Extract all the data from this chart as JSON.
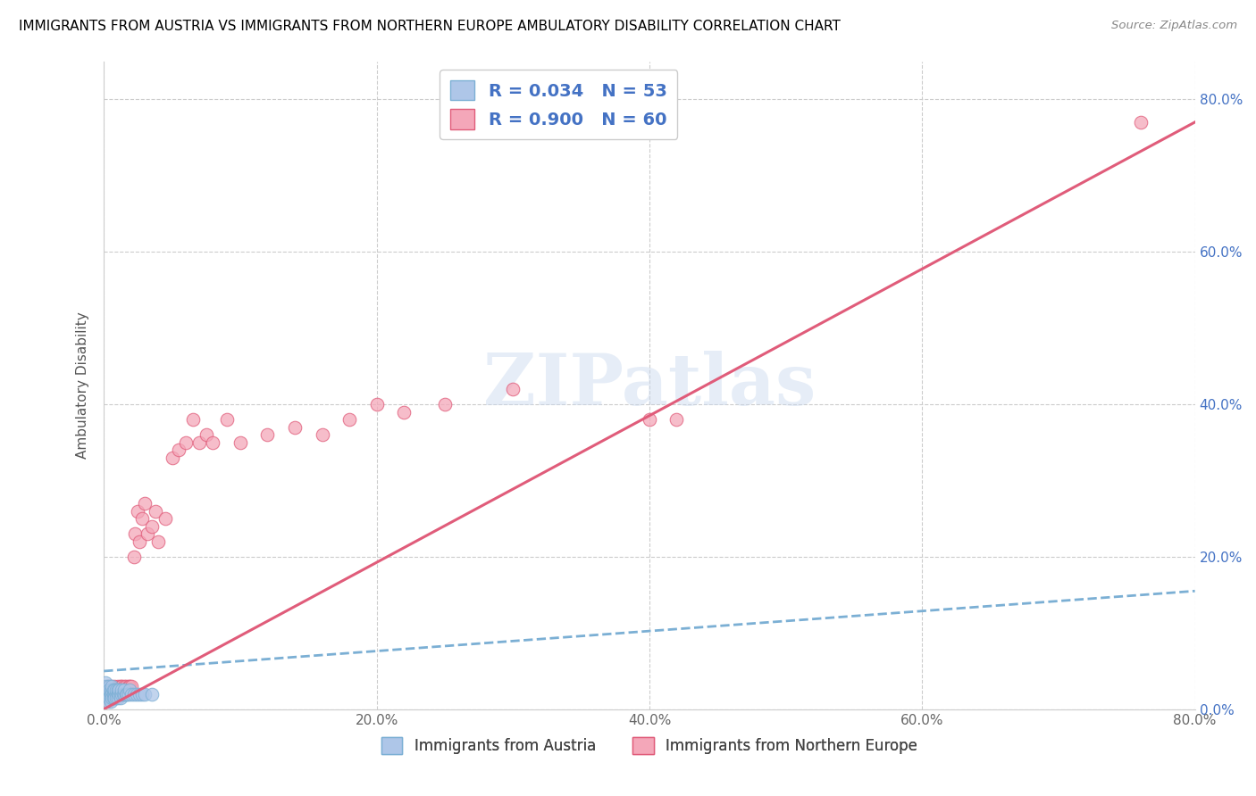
{
  "title": "IMMIGRANTS FROM AUSTRIA VS IMMIGRANTS FROM NORTHERN EUROPE AMBULATORY DISABILITY CORRELATION CHART",
  "source": "Source: ZipAtlas.com",
  "ylabel": "Ambulatory Disability",
  "legend_label1": "Immigrants from Austria",
  "legend_label2": "Immigrants from Northern Europe",
  "R1": 0.034,
  "N1": 53,
  "R2": 0.9,
  "N2": 60,
  "xlim": [
    0,
    0.8
  ],
  "ylim": [
    0,
    0.85
  ],
  "color_austria": "#aec6e8",
  "color_northern": "#f4a7b9",
  "color_austria_edge": "#7bafd4",
  "color_northern_edge": "#e05c7a",
  "color_austria_line": "#7bafd4",
  "color_northern_line": "#e05c7a",
  "color_text_blue": "#4472c4",
  "watermark": "ZIPatlas",
  "austria_x": [
    0.001,
    0.001,
    0.002,
    0.002,
    0.002,
    0.003,
    0.003,
    0.003,
    0.003,
    0.004,
    0.004,
    0.004,
    0.004,
    0.005,
    0.005,
    0.005,
    0.005,
    0.006,
    0.006,
    0.006,
    0.006,
    0.007,
    0.007,
    0.007,
    0.008,
    0.008,
    0.008,
    0.009,
    0.009,
    0.009,
    0.01,
    0.01,
    0.01,
    0.011,
    0.011,
    0.012,
    0.012,
    0.013,
    0.013,
    0.014,
    0.015,
    0.015,
    0.016,
    0.017,
    0.018,
    0.019,
    0.02,
    0.022,
    0.024,
    0.026,
    0.028,
    0.03,
    0.035
  ],
  "austria_y": [
    0.035,
    0.02,
    0.025,
    0.015,
    0.03,
    0.02,
    0.025,
    0.015,
    0.01,
    0.02,
    0.03,
    0.025,
    0.015,
    0.02,
    0.025,
    0.015,
    0.01,
    0.025,
    0.02,
    0.015,
    0.03,
    0.02,
    0.025,
    0.015,
    0.02,
    0.025,
    0.015,
    0.02,
    0.025,
    0.015,
    0.02,
    0.025,
    0.015,
    0.02,
    0.025,
    0.02,
    0.015,
    0.02,
    0.025,
    0.02,
    0.02,
    0.025,
    0.02,
    0.02,
    0.02,
    0.025,
    0.02,
    0.02,
    0.02,
    0.02,
    0.02,
    0.02,
    0.02
  ],
  "northern_x": [
    0.001,
    0.002,
    0.002,
    0.003,
    0.003,
    0.004,
    0.005,
    0.005,
    0.005,
    0.006,
    0.006,
    0.007,
    0.007,
    0.008,
    0.008,
    0.009,
    0.01,
    0.01,
    0.011,
    0.012,
    0.013,
    0.014,
    0.015,
    0.015,
    0.016,
    0.017,
    0.018,
    0.019,
    0.02,
    0.022,
    0.023,
    0.025,
    0.026,
    0.028,
    0.03,
    0.032,
    0.035,
    0.038,
    0.04,
    0.045,
    0.05,
    0.055,
    0.06,
    0.065,
    0.07,
    0.075,
    0.08,
    0.09,
    0.1,
    0.12,
    0.14,
    0.16,
    0.18,
    0.2,
    0.22,
    0.25,
    0.3,
    0.4,
    0.42,
    0.76
  ],
  "northern_y": [
    0.01,
    0.015,
    0.025,
    0.02,
    0.03,
    0.015,
    0.02,
    0.03,
    0.025,
    0.02,
    0.025,
    0.02,
    0.025,
    0.025,
    0.03,
    0.025,
    0.025,
    0.03,
    0.025,
    0.03,
    0.03,
    0.025,
    0.03,
    0.025,
    0.03,
    0.025,
    0.03,
    0.03,
    0.03,
    0.2,
    0.23,
    0.26,
    0.22,
    0.25,
    0.27,
    0.23,
    0.24,
    0.26,
    0.22,
    0.25,
    0.33,
    0.34,
    0.35,
    0.38,
    0.35,
    0.36,
    0.35,
    0.38,
    0.35,
    0.36,
    0.37,
    0.36,
    0.38,
    0.4,
    0.39,
    0.4,
    0.42,
    0.38,
    0.38,
    0.77
  ],
  "trend_austria_x0": 0.0,
  "trend_austria_y0": 0.05,
  "trend_austria_x1": 0.8,
  "trend_austria_y1": 0.155,
  "trend_northern_x0": 0.0,
  "trend_northern_y0": 0.0,
  "trend_northern_x1": 0.8,
  "trend_northern_y1": 0.77
}
